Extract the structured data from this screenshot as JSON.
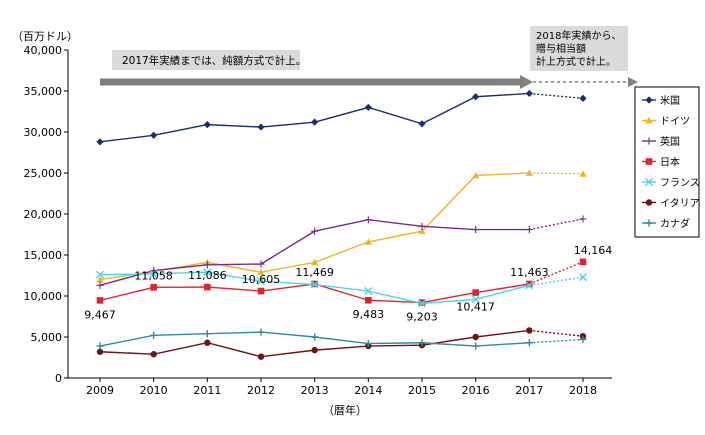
{
  "chart_data": {
    "type": "line",
    "x": [
      "2009",
      "2010",
      "2011",
      "2012",
      "2013",
      "2014",
      "2015",
      "2016",
      "2017",
      "2018"
    ],
    "y_unit": "（百万ドル）",
    "xlabel": "（暦年）",
    "ylim": [
      0,
      40000
    ],
    "y_ticks": [
      "0",
      "5,000",
      "10,000",
      "15,000",
      "20,000",
      "25,000",
      "30,000",
      "35,000",
      "40,000"
    ],
    "grid": false,
    "legend_position": "right",
    "series": [
      {
        "name": "米国",
        "color": "#1F2D6B",
        "marker": "diamond",
        "values": [
          28800,
          29600,
          30900,
          30600,
          31200,
          33000,
          31000,
          34300,
          34700,
          34100
        ]
      },
      {
        "name": "ドイツ",
        "color": "#F2B321",
        "marker": "triangle",
        "values": [
          12000,
          13000,
          14100,
          12900,
          14100,
          16600,
          17900,
          24700,
          25000,
          24900
        ]
      },
      {
        "name": "英国",
        "color": "#7A2A8E",
        "marker": "cross",
        "values": [
          11300,
          13100,
          13800,
          13900,
          17900,
          19300,
          18500,
          18100,
          18100,
          19400
        ]
      },
      {
        "name": "日本",
        "color": "#E0242B",
        "marker": "square",
        "values": [
          9467,
          11058,
          11086,
          10605,
          11469,
          9483,
          9203,
          10417,
          11463,
          14164
        ]
      },
      {
        "name": "フランス",
        "color": "#4FD6E6",
        "marker": "x",
        "values": [
          12600,
          12700,
          12900,
          11800,
          11400,
          10600,
          9100,
          9600,
          11300,
          12300
        ]
      },
      {
        "name": "イタリア",
        "color": "#6B1414",
        "marker": "circle",
        "values": [
          3200,
          2900,
          4300,
          2600,
          3400,
          3900,
          4000,
          5000,
          5800,
          5100
        ]
      },
      {
        "name": "カナダ",
        "color": "#2E8C9E",
        "marker": "plus",
        "values": [
          3900,
          5200,
          5400,
          5600,
          5000,
          4200,
          4300,
          3900,
          4300,
          4700
        ]
      }
    ],
    "japan_labels": [
      "9,467",
      "11,058",
      "11,086",
      "10,605",
      "11,469",
      "9,483",
      "9,203",
      "10,417",
      "11,463",
      "14,164"
    ],
    "annotations": {
      "before": "2017年実績までは、純額方式で計上。",
      "after": [
        "2018年実績から、",
        "贈与相当額",
        "計上方式で計上。"
      ]
    }
  }
}
